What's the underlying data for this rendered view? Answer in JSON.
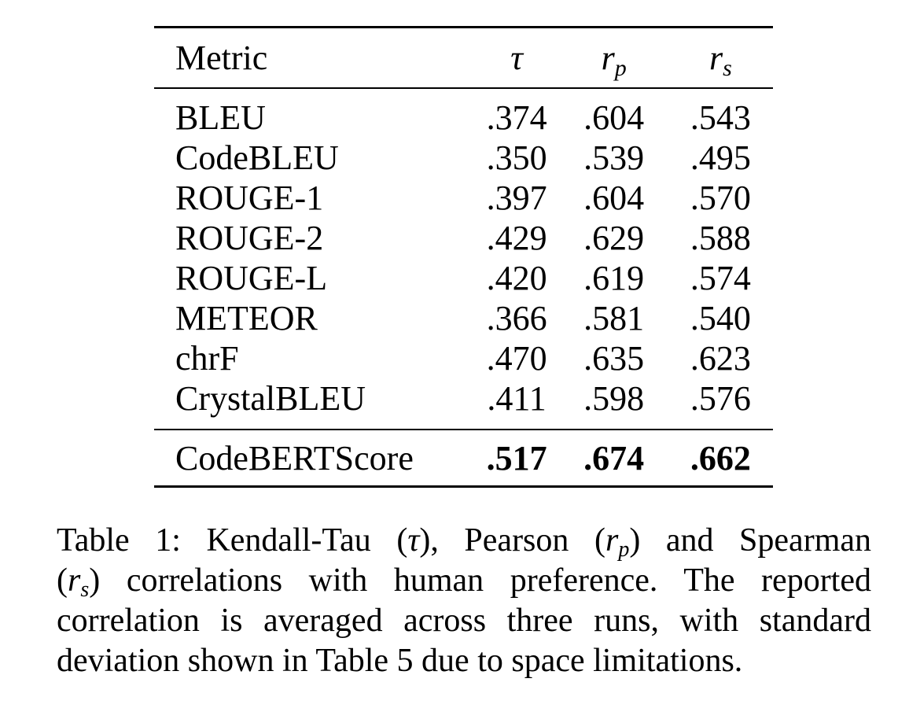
{
  "table": {
    "header": {
      "metric": "Metric",
      "tau": "τ",
      "rp_base": "r",
      "rp_sub": "p",
      "rs_base": "r",
      "rs_sub": "s"
    },
    "rows": [
      {
        "metric": "BLEU",
        "tau": ".374",
        "rp": ".604",
        "rs": ".543"
      },
      {
        "metric": "CodeBLEU",
        "tau": ".350",
        "rp": ".539",
        "rs": ".495"
      },
      {
        "metric": "ROUGE-1",
        "tau": ".397",
        "rp": ".604",
        "rs": ".570"
      },
      {
        "metric": "ROUGE-2",
        "tau": ".429",
        "rp": ".629",
        "rs": ".588"
      },
      {
        "metric": "ROUGE-L",
        "tau": ".420",
        "rp": ".619",
        "rs": ".574"
      },
      {
        "metric": "METEOR",
        "tau": ".366",
        "rp": ".581",
        "rs": ".540"
      },
      {
        "metric": "chrF",
        "tau": ".470",
        "rp": ".635",
        "rs": ".623"
      },
      {
        "metric": "CrystalBLEU",
        "tau": ".411",
        "rp": ".598",
        "rs": ".576"
      }
    ],
    "final_row": {
      "metric": "CodeBERTScore",
      "tau": ".517",
      "rp": ".674",
      "rs": ".662"
    }
  },
  "caption": {
    "line1_a": "Table 1: Kendall-Tau (",
    "line1_tau": "τ",
    "line1_b": "), Pearson (",
    "line1_r": "r",
    "line1_p": "p",
    "line1_c": ") and Spearman",
    "line2_a": "(",
    "line2_r": "r",
    "line2_s": "s",
    "line2_b": ") correlations with human preference.  The reported",
    "line3": "correlation is averaged across three runs, with standard",
    "line4": "deviation shown in Table 5 due to space limitations."
  }
}
